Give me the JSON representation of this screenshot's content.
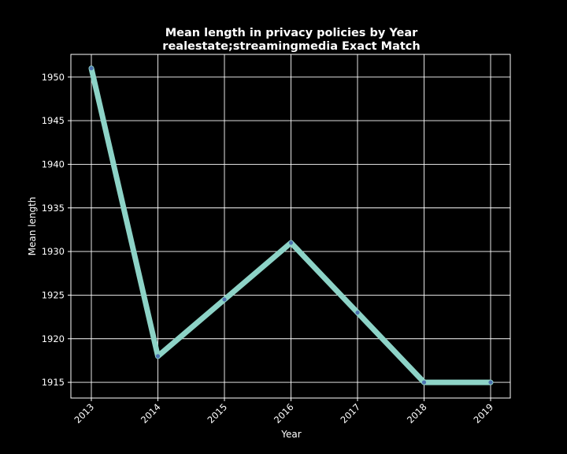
{
  "chart_data": {
    "type": "line",
    "title": "Mean length in privacy policies by Year",
    "subtitle": "realestate;streamingmedia Exact Match",
    "xlabel": "Year",
    "ylabel": "Mean length",
    "x": [
      "2013",
      "2014",
      "2015",
      "2016",
      "2017",
      "2018",
      "2019"
    ],
    "series": [
      {
        "values": [
          1951,
          1918,
          1924.5,
          1931,
          1923,
          1915,
          1915
        ]
      }
    ],
    "ylim": [
      1913.2,
      1952.6
    ],
    "yticks": [
      1915,
      1920,
      1925,
      1930,
      1935,
      1940,
      1945,
      1950
    ],
    "grid": true,
    "colors": {
      "background": "#000000",
      "line": "#8dd3c7",
      "marker": "#4c72b0",
      "grid": "#ffffff",
      "text": "#ffffff"
    }
  }
}
